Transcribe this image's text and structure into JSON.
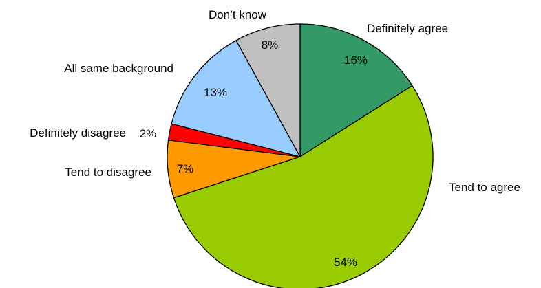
{
  "chart_data": {
    "type": "pie",
    "slices": [
      {
        "label": "Definitely agree",
        "value": 16,
        "value_label": "16%",
        "color": "#339966"
      },
      {
        "label": "Tend to agree",
        "value": 54,
        "value_label": "54%",
        "color": "#99cc00"
      },
      {
        "label": "Tend to disagree",
        "value": 7,
        "value_label": "7%",
        "color": "#ff9900"
      },
      {
        "label": "Definitely disagree",
        "value": 2,
        "value_label": "2%",
        "color": "#ff0000"
      },
      {
        "label": "All same background",
        "value": 13,
        "value_label": "13%",
        "color": "#99ccff"
      },
      {
        "label": "Don’t know",
        "value": 8,
        "value_label": "8%",
        "color": "#c0c0c0"
      }
    ],
    "start_angle": "12 o'clock",
    "direction": "clockwise"
  }
}
